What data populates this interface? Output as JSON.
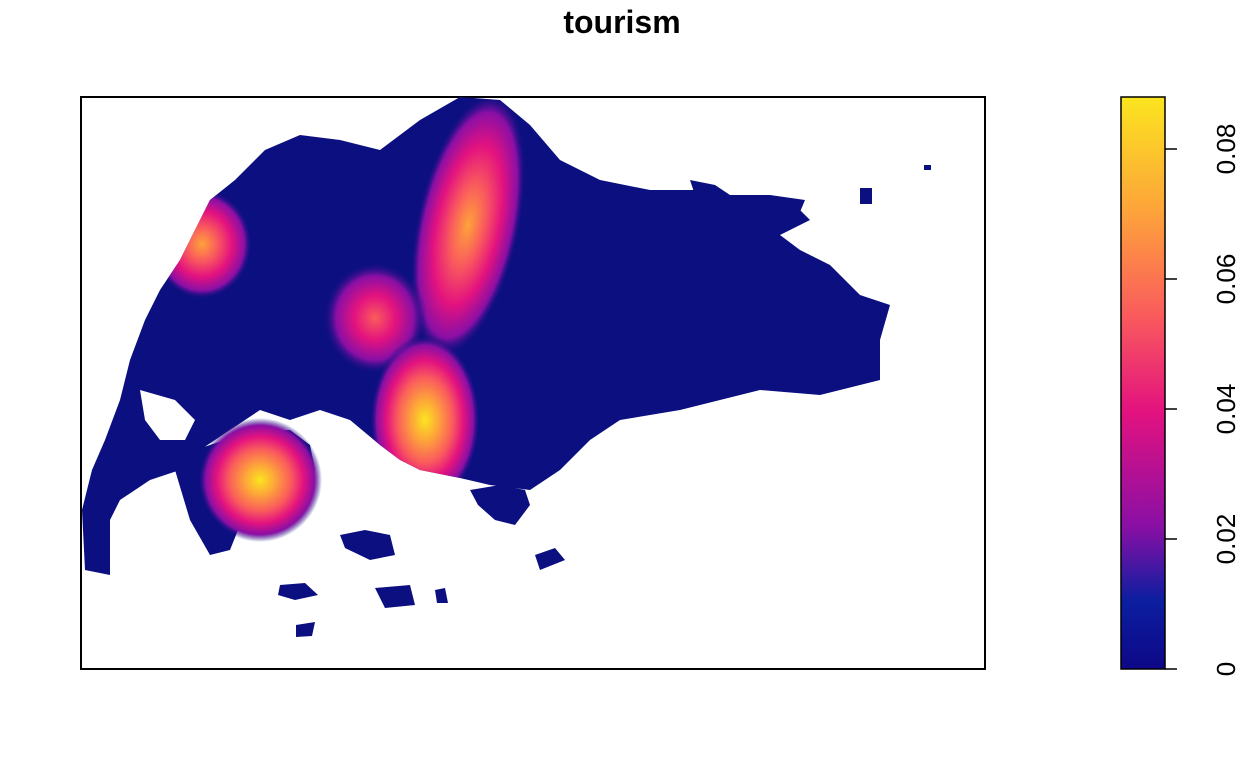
{
  "chart_data": {
    "type": "heatmap",
    "title": "tourism",
    "legend": {
      "placement": "right",
      "range": [
        0,
        0.088
      ],
      "ticks": [
        {
          "value": 0,
          "label": "0"
        },
        {
          "value": 0.02,
          "label": "0.02"
        },
        {
          "value": 0.04,
          "label": "0.04"
        },
        {
          "value": 0.06,
          "label": "0.06"
        },
        {
          "value": 0.08,
          "label": "0.08"
        }
      ],
      "colormap": [
        "#0d0887",
        "#0c1ea0",
        "#8a0fa5",
        "#e3127f",
        "#fa5c5c",
        "#fda33a",
        "#fbe51f"
      ]
    },
    "axes_visible": false,
    "grid": false,
    "background_value_color": "#0b0f80",
    "hotspots": [
      {
        "name": "north-west",
        "peak": 0.068
      },
      {
        "name": "north-central band",
        "peak": 0.075
      },
      {
        "name": "central",
        "peak": 0.055
      },
      {
        "name": "south-central",
        "peak": 0.085
      },
      {
        "name": "south-west island",
        "peak": 0.088
      }
    ]
  }
}
